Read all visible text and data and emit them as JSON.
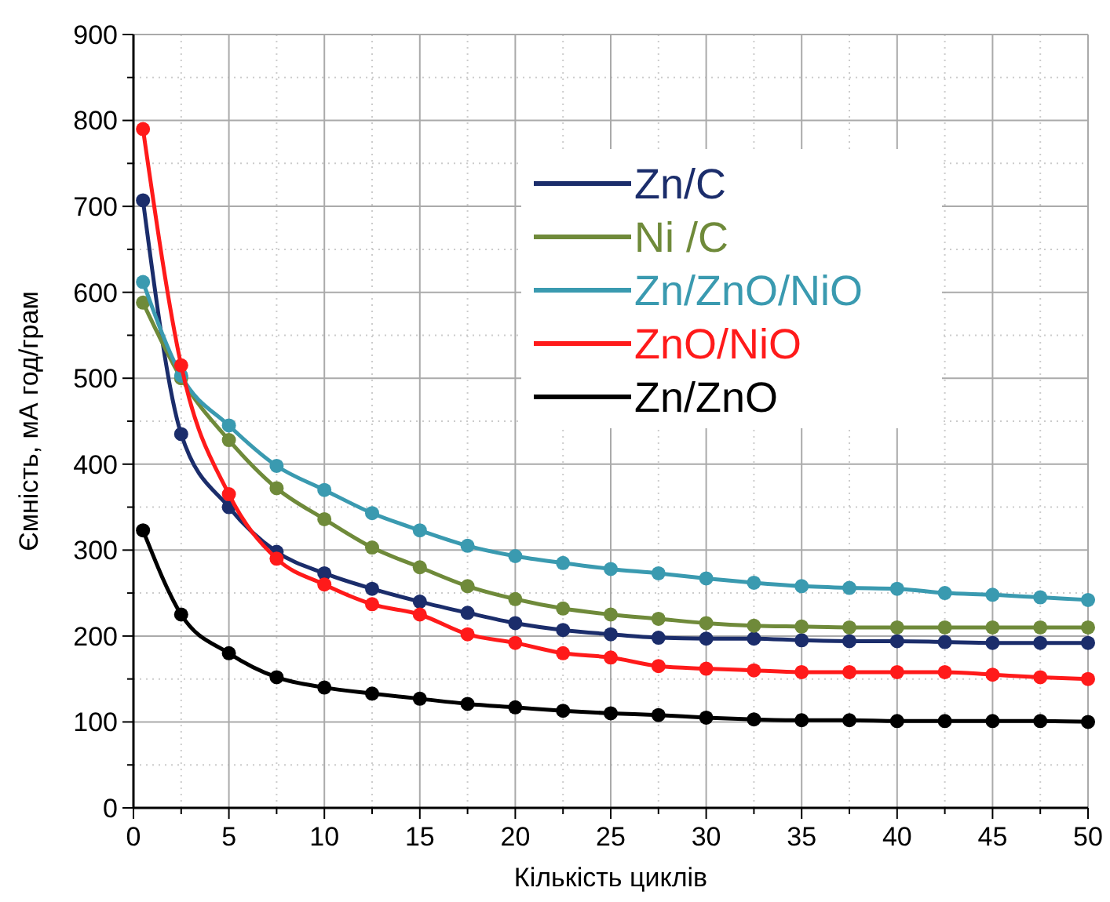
{
  "chart_data": {
    "type": "line",
    "xlabel": "Кількість циклів",
    "ylabel": "Ємність, мА год/грам",
    "x": [
      0.5,
      2.5,
      5,
      7.5,
      10,
      12.5,
      15,
      17.5,
      20,
      22.5,
      25,
      27.5,
      30,
      32.5,
      35,
      37.5,
      40,
      42.5,
      45,
      47.5,
      50
    ],
    "series": [
      {
        "name": "Zn/C",
        "color": "#1b2d6b",
        "values": [
          707,
          435,
          350,
          298,
          273,
          255,
          240,
          227,
          215,
          207,
          202,
          198,
          197,
          197,
          195,
          194,
          194,
          193,
          192,
          192,
          192
        ]
      },
      {
        "name": "Ni /C",
        "color": "#6f8a3a",
        "values": [
          588,
          500,
          428,
          372,
          336,
          303,
          280,
          258,
          243,
          232,
          225,
          220,
          215,
          212,
          211,
          210,
          210,
          210,
          210,
          210,
          210
        ]
      },
      {
        "name": "Zn/ZnO/NiO",
        "color": "#3a9ab0",
        "values": [
          612,
          503,
          445,
          398,
          370,
          343,
          323,
          305,
          293,
          285,
          278,
          273,
          267,
          262,
          258,
          256,
          255,
          250,
          248,
          245,
          242
        ]
      },
      {
        "name": "ZnO/NiO",
        "color": "#ff1a1a",
        "values": [
          790,
          515,
          365,
          290,
          260,
          237,
          225,
          202,
          192,
          180,
          175,
          165,
          162,
          160,
          158,
          158,
          158,
          158,
          155,
          152,
          150
        ]
      },
      {
        "name": "Zn/ZnO",
        "color": "#000000",
        "values": [
          323,
          225,
          180,
          152,
          140,
          133,
          127,
          121,
          117,
          113,
          110,
          108,
          105,
          103,
          102,
          102,
          101,
          101,
          101,
          101,
          100
        ]
      }
    ],
    "xlim": [
      0,
      50
    ],
    "xticks": [
      0,
      5,
      10,
      15,
      20,
      25,
      30,
      35,
      40,
      45,
      50
    ],
    "ylim": [
      0,
      900
    ],
    "yticks": [
      0,
      100,
      200,
      300,
      400,
      500,
      600,
      700,
      800,
      900
    ],
    "grid": true,
    "legend": "top right",
    "marker": "circle",
    "line_style": "solid"
  }
}
